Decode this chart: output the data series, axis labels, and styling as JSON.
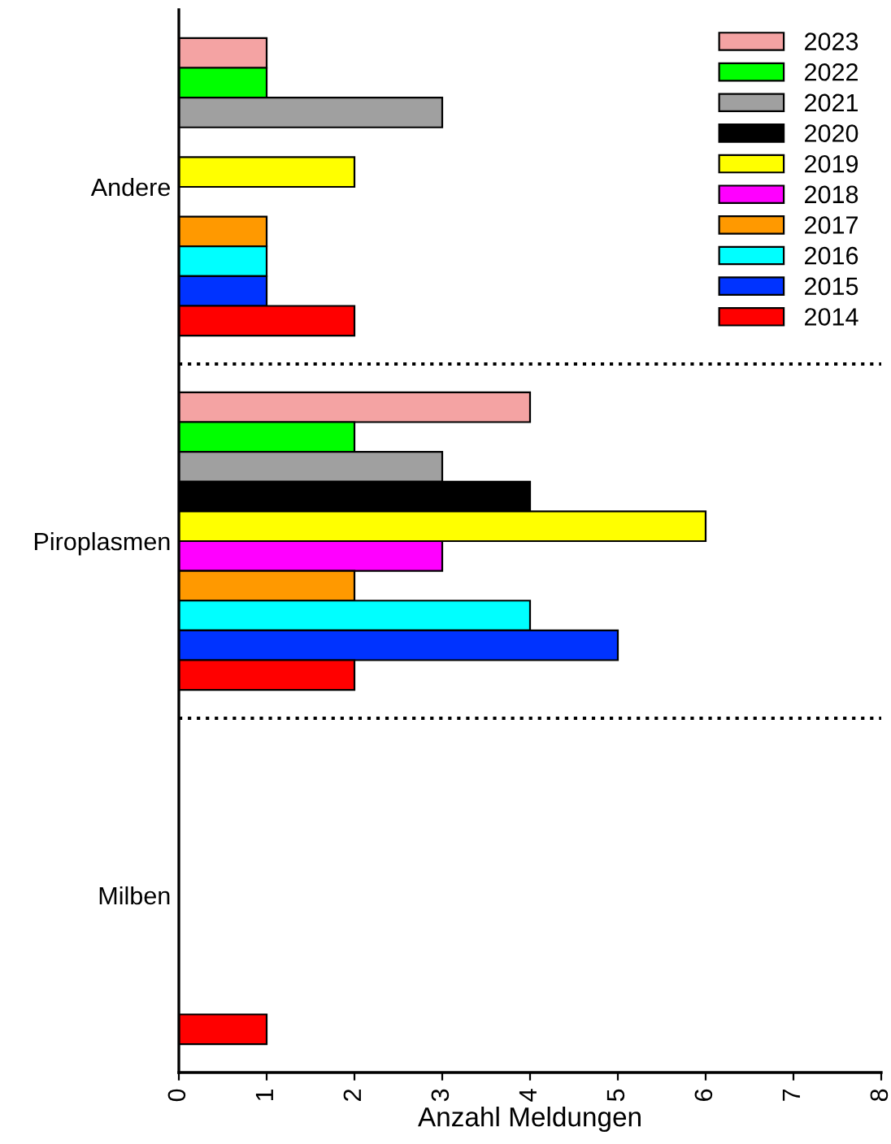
{
  "chart_data": {
    "type": "bar",
    "orientation": "horizontal",
    "categories": [
      "Andere",
      "Piroplasmen",
      "Milben"
    ],
    "xlabel": "Anzahl Meldungen",
    "xlim": [
      0,
      8
    ],
    "xticks": [
      0,
      1,
      2,
      3,
      4,
      5,
      6,
      7,
      8
    ],
    "grid": false,
    "legend": "top right",
    "series": [
      {
        "name": "2023",
        "color": "#f4a3a3",
        "values": [
          1,
          4,
          null
        ]
      },
      {
        "name": "2022",
        "color": "#00ff00",
        "values": [
          1,
          2,
          null
        ]
      },
      {
        "name": "2021",
        "color": "#a0a0a0",
        "values": [
          3,
          3,
          null
        ]
      },
      {
        "name": "2020",
        "color": "#000000",
        "values": [
          null,
          4,
          null
        ]
      },
      {
        "name": "2019",
        "color": "#ffff00",
        "values": [
          2,
          6,
          null
        ]
      },
      {
        "name": "2018",
        "color": "#ff00ff",
        "values": [
          null,
          3,
          null
        ]
      },
      {
        "name": "2017",
        "color": "#ff9900",
        "values": [
          1,
          2,
          null
        ]
      },
      {
        "name": "2016",
        "color": "#00ffff",
        "values": [
          1,
          4,
          null
        ]
      },
      {
        "name": "2015",
        "color": "#0033ff",
        "values": [
          1,
          5,
          null
        ]
      },
      {
        "name": "2014",
        "color": "#ff0000",
        "values": [
          2,
          2,
          1
        ]
      }
    ]
  }
}
